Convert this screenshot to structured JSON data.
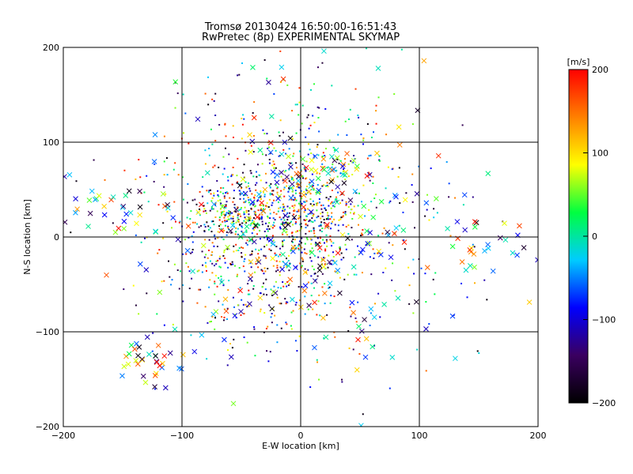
{
  "chart_data": {
    "type": "scatter",
    "title": "Tromsø 20130424 16:50:00-16:51:43",
    "subtitle": "RwPretec (8p) EXPERIMENTAL SKYMAP",
    "xlabel": "E-W location [km]",
    "ylabel": "N-S location [km]",
    "xlim": [
      -200,
      200
    ],
    "ylim": [
      -200,
      200
    ],
    "x_ticks": [
      -200,
      -100,
      0,
      100,
      200
    ],
    "y_ticks": [
      -200,
      -100,
      0,
      100,
      200
    ],
    "x_tick_labels": [
      "−200",
      "−100",
      "0",
      "100",
      "200"
    ],
    "y_tick_labels": [
      "−200",
      "−100",
      "0",
      "100",
      "200"
    ],
    "grid": true,
    "colorbar": {
      "label": "[m/s]",
      "range": [
        -200,
        200
      ],
      "ticks": [
        200,
        100,
        0,
        -100,
        -200
      ],
      "tick_labels": [
        "200",
        "100",
        "0",
        "−100",
        "−200"
      ],
      "colormap": [
        "#000000",
        "#3a0060",
        "#0000ff",
        "#00ccff",
        "#00ff40",
        "#ffff00",
        "#ff8000",
        "#ff0000"
      ]
    },
    "markers": [
      "dot",
      "cross"
    ],
    "clusters": [
      {
        "marker": "dot",
        "count": 560,
        "center": [
          -30,
          -10
        ],
        "spread": [
          45,
          50
        ]
      },
      {
        "marker": "dot",
        "count": 260,
        "center": [
          0,
          25
        ],
        "spread": [
          22,
          28
        ]
      },
      {
        "marker": "dot",
        "count": 180,
        "center": [
          -55,
          25
        ],
        "spread": [
          18,
          12
        ]
      },
      {
        "marker": "dot",
        "count": 200,
        "center": [
          20,
          60
        ],
        "spread": [
          40,
          60
        ]
      },
      {
        "marker": "dot",
        "count": 150,
        "center": [
          -60,
          60
        ],
        "spread": [
          55,
          60
        ]
      },
      {
        "marker": "dot",
        "count": 120,
        "center": [
          60,
          -40
        ],
        "spread": [
          60,
          60
        ]
      },
      {
        "marker": "cross",
        "count": 230,
        "center": [
          0,
          0
        ],
        "spread": [
          75,
          75
        ]
      },
      {
        "marker": "cross",
        "count": 40,
        "center": [
          10,
          70
        ],
        "spread": [
          20,
          15
        ]
      },
      {
        "marker": "cross",
        "count": 30,
        "center": [
          -125,
          -135
        ],
        "spread": [
          12,
          12
        ]
      },
      {
        "marker": "cross",
        "count": 30,
        "center": [
          155,
          -15
        ],
        "spread": [
          18,
          15
        ]
      },
      {
        "marker": "cross",
        "count": 25,
        "center": [
          -165,
          30
        ],
        "spread": [
          15,
          10
        ]
      }
    ]
  }
}
